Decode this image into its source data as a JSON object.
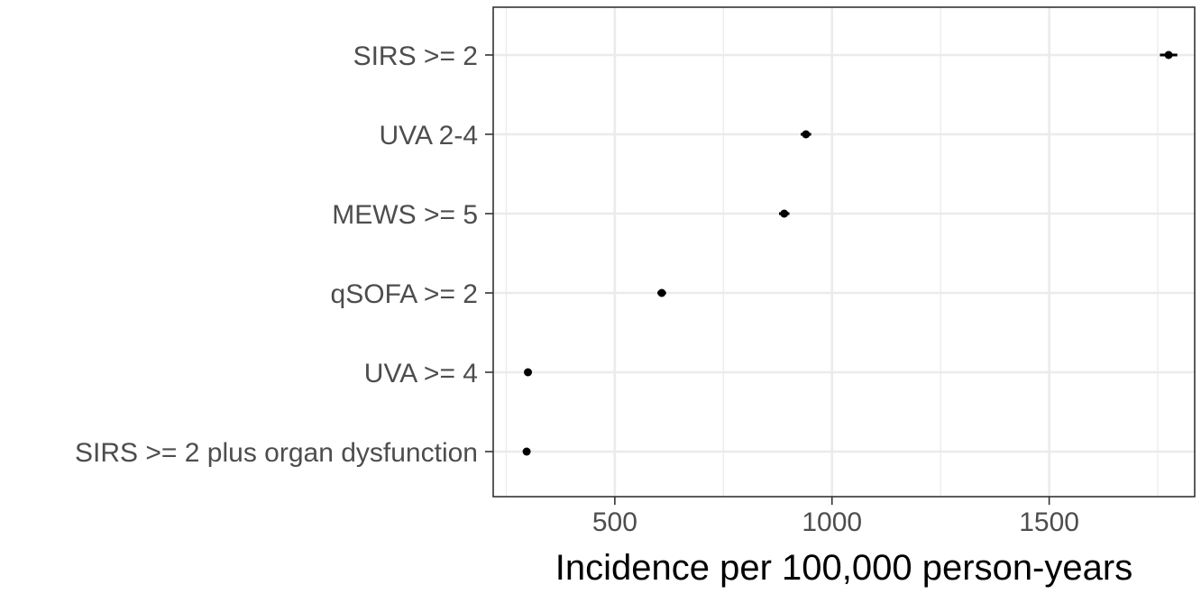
{
  "chart_data": {
    "type": "scatter",
    "categories": [
      "SIRS >= 2",
      "UVA 2-4",
      "MEWS >= 5",
      "qSOFA >= 2",
      "UVA >= 4",
      "SIRS >= 2 plus organ dysfunction"
    ],
    "series": [
      {
        "values": [
          1775,
          940,
          890,
          608,
          300,
          297
        ],
        "ci_low": [
          1755,
          928,
          878,
          598,
          294,
          291
        ],
        "ci_high": [
          1795,
          952,
          902,
          618,
          306,
          303
        ]
      }
    ],
    "xlabel": "Incidence per 100,000 person-years",
    "ylabel": "",
    "xlim": [
      220,
      1835
    ],
    "xticks": [
      500,
      1000,
      1500
    ],
    "xtick_labels": [
      "500",
      "1000",
      "1500"
    ],
    "grid": true,
    "theme": "bw",
    "point_color": "#000000",
    "grid_color": "#ebebeb",
    "axis_text_color": "#4d4d4d"
  }
}
